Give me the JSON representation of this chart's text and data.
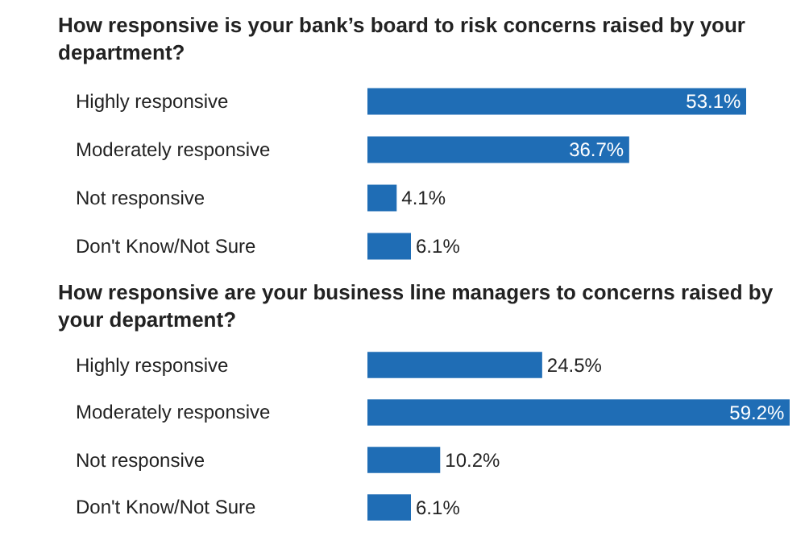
{
  "chart_data": [
    {
      "type": "bar",
      "orientation": "horizontal",
      "title": "How responsive is your bank’s board to risk concerns raised by your department?",
      "categories": [
        "Highly responsive",
        "Moderately responsive",
        "Not responsive",
        "Don't Know/Not Sure"
      ],
      "values": [
        53.1,
        36.7,
        4.1,
        6.1
      ],
      "value_labels": [
        "53.1%",
        "36.7%",
        "4.1%",
        "6.1%"
      ],
      "color": "#1f6db5"
    },
    {
      "type": "bar",
      "orientation": "horizontal",
      "title": "How responsive are your business line managers to concerns raised by your department?",
      "categories": [
        "Highly responsive",
        "Moderately responsive",
        "Not responsive",
        "Don't Know/Not Sure"
      ],
      "values": [
        24.5,
        59.2,
        10.2,
        6.1
      ],
      "value_labels": [
        "24.5%",
        "59.2%",
        "10.2%",
        "6.1%"
      ],
      "color": "#1f6db5"
    }
  ]
}
